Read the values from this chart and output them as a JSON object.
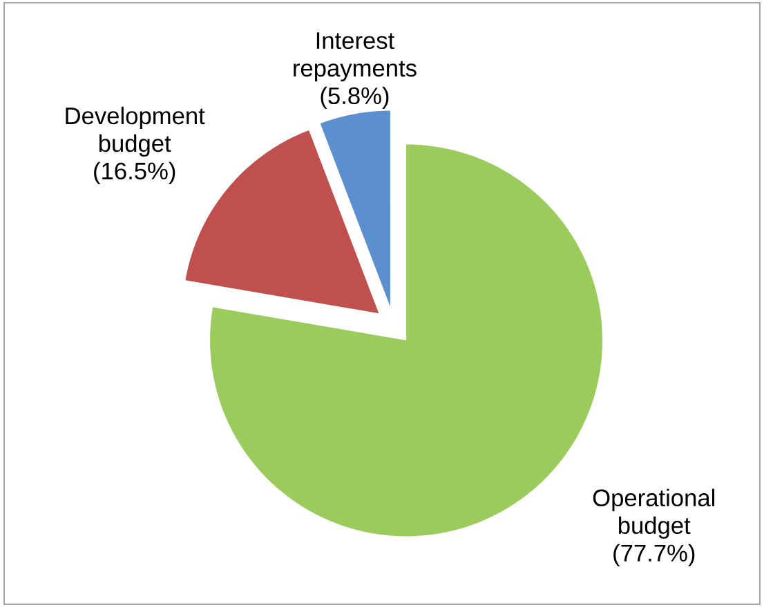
{
  "chart_data": {
    "type": "pie",
    "categories": [
      "Operational budget",
      "Development budget",
      "Interest repayments"
    ],
    "values": [
      77.7,
      16.5,
      5.8
    ],
    "value_labels": [
      "(77.7%)",
      "(16.5%)",
      "(5.8%)"
    ],
    "colors": [
      "#9bcb5d",
      "#c0504d",
      "#5b8fd0"
    ]
  }
}
